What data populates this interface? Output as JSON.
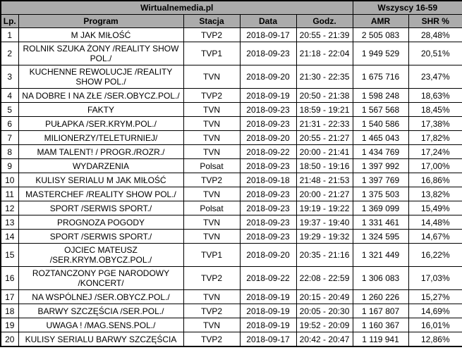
{
  "chart_data": {
    "type": "table",
    "source_title": "Wirtualnemedia.pl",
    "demographic_title": "Wszyscy 16-59",
    "columns": [
      "Lp.",
      "Program",
      "Stacja",
      "Data",
      "Godz.",
      "AMR",
      "SHR %"
    ],
    "rows": [
      {
        "lp": "1",
        "program": "M JAK MIŁOŚĆ",
        "stacja": "TVP2",
        "data": "2018-09-17",
        "godz": "20:55 - 21:39",
        "amr": "2 505 083",
        "shr": "28,48%"
      },
      {
        "lp": "2",
        "program": "ROLNIK SZUKA ŻONY /REALITY SHOW POL./",
        "stacja": "TVP1",
        "data": "2018-09-23",
        "godz": "21:18 - 22:04",
        "amr": "1 949 529",
        "shr": "20,51%"
      },
      {
        "lp": "3",
        "program": "KUCHENNE REWOLUCJE /REALITY SHOW POL./",
        "stacja": "TVN",
        "data": "2018-09-20",
        "godz": "21:30 - 22:35",
        "amr": "1 675 716",
        "shr": "23,47%"
      },
      {
        "lp": "4",
        "program": "NA DOBRE I NA ZŁE /SER.OBYCZ.POL./",
        "stacja": "TVP2",
        "data": "2018-09-19",
        "godz": "20:50 - 21:38",
        "amr": "1 598 248",
        "shr": "18,63%"
      },
      {
        "lp": "5",
        "program": "FAKTY",
        "stacja": "TVN",
        "data": "2018-09-23",
        "godz": "18:59 - 19:21",
        "amr": "1 567 568",
        "shr": "18,45%"
      },
      {
        "lp": "6",
        "program": "PUŁAPKA /SER.KRYM.POL./",
        "stacja": "TVN",
        "data": "2018-09-23",
        "godz": "21:31 - 22:33",
        "amr": "1 540 586",
        "shr": "17,38%"
      },
      {
        "lp": "7",
        "program": "MILIONERZY/TELETURNIEJ/",
        "stacja": "TVN",
        "data": "2018-09-20",
        "godz": "20:55 - 21:27",
        "amr": "1 465 043",
        "shr": "17,82%"
      },
      {
        "lp": "8",
        "program": "MAM TALENT! / PROGR./ROZR./",
        "stacja": "TVN",
        "data": "2018-09-22",
        "godz": "20:00 - 21:41",
        "amr": "1 434 769",
        "shr": "17,24%"
      },
      {
        "lp": "9",
        "program": "WYDARZENIA",
        "stacja": "Polsat",
        "data": "2018-09-23",
        "godz": "18:50 - 19:16",
        "amr": "1 397 992",
        "shr": "17,00%"
      },
      {
        "lp": "10",
        "program": "KULISY SERIALU M JAK MIŁOŚĆ",
        "stacja": "TVP2",
        "data": "2018-09-18",
        "godz": "21:48 - 21:53",
        "amr": "1 397 769",
        "shr": "16,86%"
      },
      {
        "lp": "11",
        "program": "MASTERCHEF /REALITY SHOW POL./",
        "stacja": "TVN",
        "data": "2018-09-23",
        "godz": "20:00 - 21:27",
        "amr": "1 375 503",
        "shr": "13,82%"
      },
      {
        "lp": "12",
        "program": "SPORT /SERWIS SPORT./",
        "stacja": "Polsat",
        "data": "2018-09-23",
        "godz": "19:19 - 19:22",
        "amr": "1 369 099",
        "shr": "15,49%"
      },
      {
        "lp": "13",
        "program": "PROGNOZA POGODY",
        "stacja": "TVN",
        "data": "2018-09-23",
        "godz": "19:37 - 19:40",
        "amr": "1 331 461",
        "shr": "14,48%"
      },
      {
        "lp": "14",
        "program": "SPORT /SERWIS SPORT./",
        "stacja": "TVN",
        "data": "2018-09-23",
        "godz": "19:29 - 19:32",
        "amr": "1 324 595",
        "shr": "14,67%"
      },
      {
        "lp": "15",
        "program": "OJCIEC MATEUSZ /SER.KRYM.OBYCZ.POL./",
        "stacja": "TVP1",
        "data": "2018-09-20",
        "godz": "20:35 - 21:16",
        "amr": "1 321 449",
        "shr": "16,22%"
      },
      {
        "lp": "16",
        "program": "ROZTANCZONY PGE NARODOWY /KONCERT/",
        "stacja": "TVP2",
        "data": "2018-09-22",
        "godz": "22:08 - 22:59",
        "amr": "1 306 083",
        "shr": "17,03%"
      },
      {
        "lp": "17",
        "program": "NA WSPÓLNEJ /SER.OBYCZ.POL./",
        "stacja": "TVN",
        "data": "2018-09-19",
        "godz": "20:15 - 20:49",
        "amr": "1 260 226",
        "shr": "15,27%"
      },
      {
        "lp": "18",
        "program": "BARWY SZCZĘŚCIA /SER.POL./",
        "stacja": "TVP2",
        "data": "2018-09-19",
        "godz": "20:05 - 20:30",
        "amr": "1 167 807",
        "shr": "14,69%"
      },
      {
        "lp": "19",
        "program": "UWAGA ! /MAG.SENS.POL./",
        "stacja": "TVN",
        "data": "2018-09-19",
        "godz": "19:52 - 20:09",
        "amr": "1 160 367",
        "shr": "16,01%"
      },
      {
        "lp": "20",
        "program": "KULISY SERIALU BARWY SZCZĘŚCIA",
        "stacja": "TVP2",
        "data": "2018-09-17",
        "godz": "20:42 - 20:47",
        "amr": "1 119 941",
        "shr": "12,86%"
      }
    ],
    "layout": {
      "header_bg": "#ababab",
      "border_color": "#000000",
      "row_bg": "#ffffff",
      "text_color": "#000000"
    }
  }
}
